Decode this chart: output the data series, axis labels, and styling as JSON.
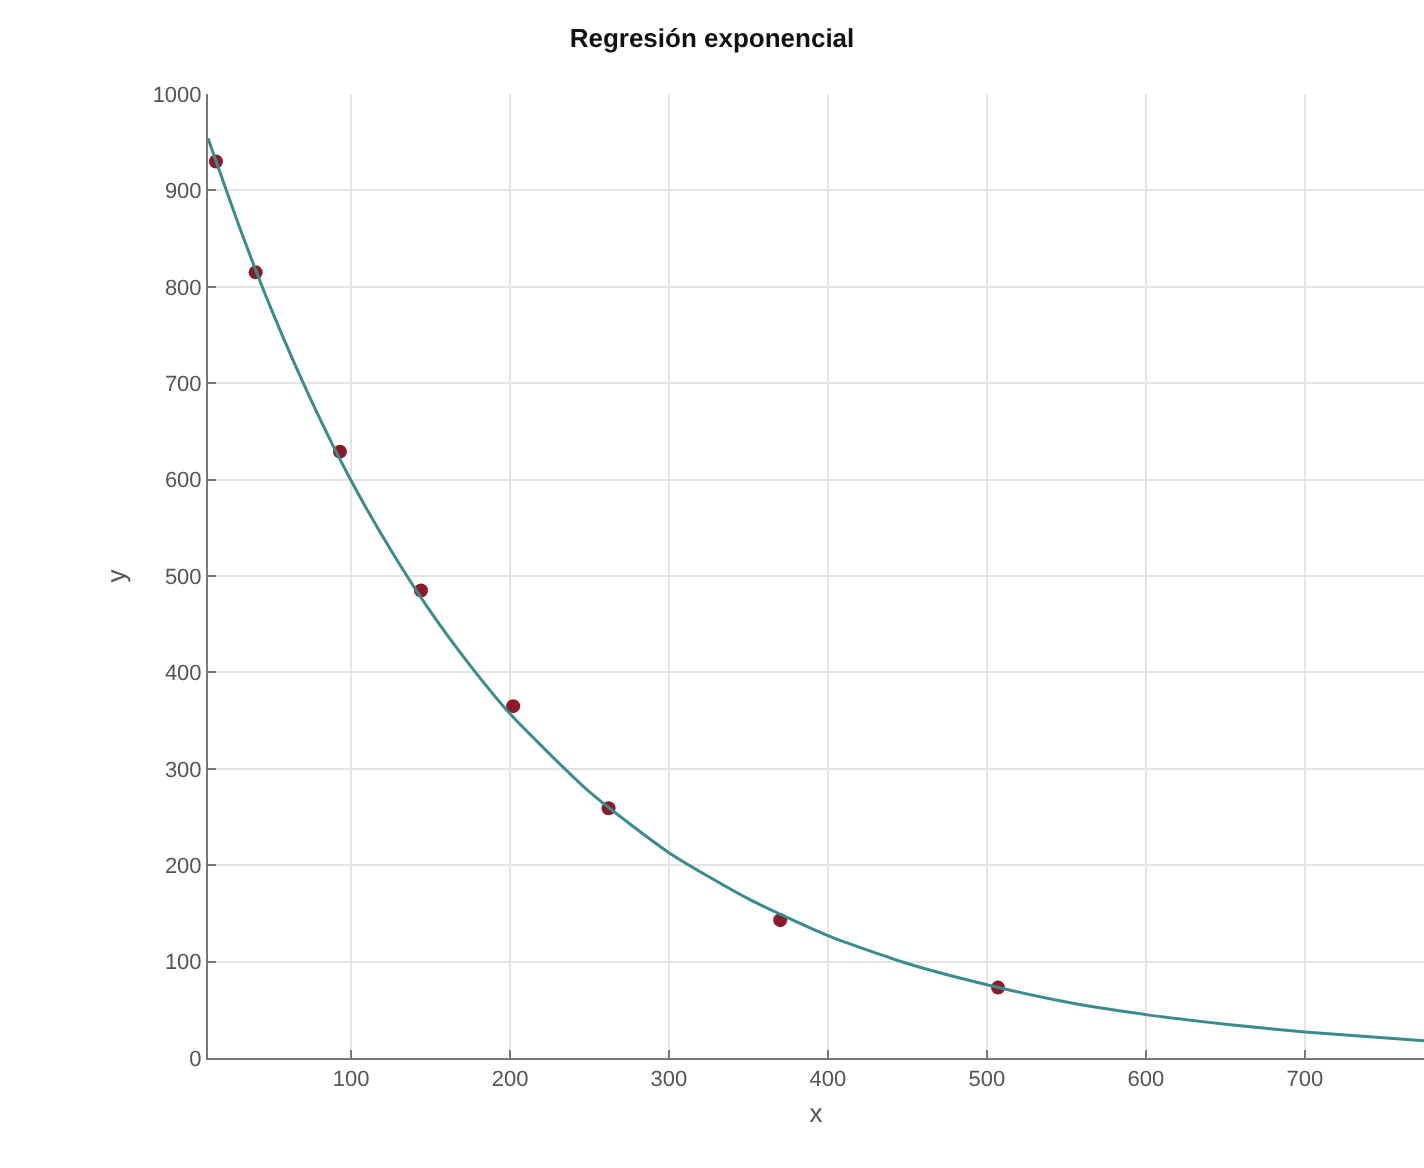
{
  "chart_data": {
    "type": "scatter",
    "title": "Regresión exponencial",
    "xlabel": "x",
    "ylabel": "y",
    "xlim": [
      10,
      775
    ],
    "xticks": [
      100,
      200,
      300,
      400,
      500,
      600,
      700
    ],
    "ylim": [
      0,
      1000
    ],
    "yticks": [
      0,
      100,
      200,
      300,
      400,
      500,
      600,
      700,
      800,
      900,
      1000
    ],
    "grid": true,
    "marker": "circle",
    "series": [
      {
        "color": "#8b1a2a",
        "x": [
          15,
          40,
          93,
          144,
          202,
          262,
          370,
          507
        ],
        "values": [
          930,
          815,
          629,
          485,
          365,
          259,
          143,
          73
        ]
      },
      {
        "type": "line",
        "color": "#3a8c8c",
        "line_style": "solid",
        "marker": "none",
        "x": [
          10,
          30,
          50,
          75,
          100,
          125,
          150,
          175,
          200,
          250,
          300,
          350,
          400,
          450,
          500,
          550,
          600,
          650,
          700,
          775
        ],
        "values": [
          954,
          861,
          776,
          682,
          599,
          527,
          463,
          407,
          357,
          276,
          213,
          165,
          127,
          98,
          76,
          58,
          45,
          35,
          27,
          18
        ]
      }
    ]
  }
}
